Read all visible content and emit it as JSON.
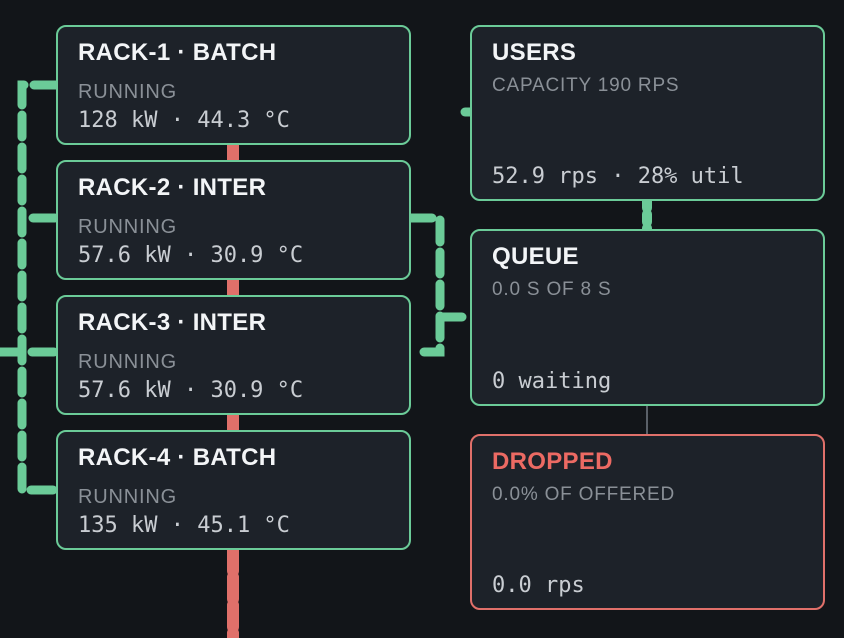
{
  "racks": [
    {
      "title": "RACK-1 · BATCH",
      "status": "RUNNING",
      "metrics": "128 kW · 44.3 °C"
    },
    {
      "title": "RACK-2 · INTER",
      "status": "RUNNING",
      "metrics": "57.6 kW · 30.9 °C"
    },
    {
      "title": "RACK-3 · INTER",
      "status": "RUNNING",
      "metrics": "57.6 kW · 30.9 °C"
    },
    {
      "title": "RACK-4 · BATCH",
      "status": "RUNNING",
      "metrics": "135 kW · 45.1 °C"
    }
  ],
  "users": {
    "title": "USERS",
    "subtitle": "CAPACITY 190 RPS",
    "metrics": "52.9 rps · 28% util"
  },
  "queue": {
    "title": "QUEUE",
    "subtitle": "0.0 S OF 8 S",
    "metrics": "0 waiting"
  },
  "dropped": {
    "title": "DROPPED",
    "subtitle": "0.0% OF OFFERED",
    "metrics": "0.0 rps"
  }
}
